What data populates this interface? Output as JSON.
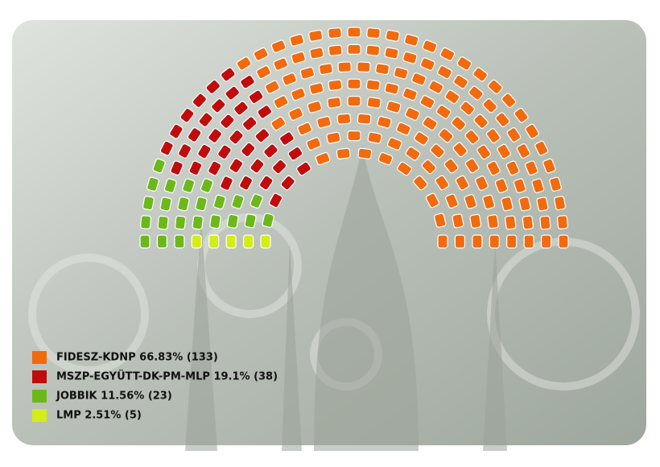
{
  "chart_data": {
    "type": "parliament",
    "series": [
      {
        "label": "LMP 2.51% (5)",
        "seats": 5,
        "color": "#d4ec17"
      },
      {
        "label": "JOBBIK 11.56% (23)",
        "seats": 23,
        "color": "#6cb81a"
      },
      {
        "label": "MSZP-EGYÜTT-DK-PM-MLP 19.1% (38)",
        "seats": 38,
        "color": "#c00c0c"
      },
      {
        "label": "FIDESZ-KDNP 66.83% (133)",
        "seats": 133,
        "color": "#f26a0e"
      }
    ],
    "legend_order": [
      3,
      2,
      1,
      0
    ]
  }
}
